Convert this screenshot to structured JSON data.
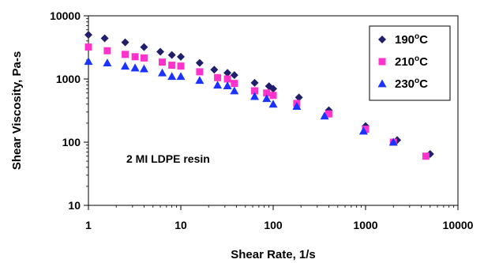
{
  "chart_data": {
    "type": "scatter",
    "xscale": "log",
    "yscale": "log",
    "xlim": [
      1,
      10000
    ],
    "ylim": [
      10,
      10000
    ],
    "xlabel": "Shear Rate, 1/s",
    "ylabel": "Shear Viscosity, Pa-s",
    "grid": false,
    "legend_position": "top-right",
    "x_ticks": [
      {
        "value": 1,
        "label": "1"
      },
      {
        "value": 10,
        "label": "10"
      },
      {
        "value": 100,
        "label": "100"
      },
      {
        "value": 1000,
        "label": "1000"
      },
      {
        "value": 10000,
        "label": "10000"
      }
    ],
    "y_ticks": [
      {
        "value": 10,
        "label": "10"
      },
      {
        "value": 100,
        "label": "100"
      },
      {
        "value": 1000,
        "label": "1000"
      },
      {
        "value": 10000,
        "label": "10000"
      }
    ],
    "annotation": "2 MI LDPE resin",
    "series": [
      {
        "name_base": "190",
        "name_super": "o",
        "name_suffix": "C",
        "marker": "diamond",
        "color": "#1F1F6B",
        "points": [
          [
            1,
            5000
          ],
          [
            1.5,
            4400
          ],
          [
            2.5,
            3800
          ],
          [
            4,
            3200
          ],
          [
            6,
            2700
          ],
          [
            8,
            2400
          ],
          [
            10,
            2250
          ],
          [
            16,
            1800
          ],
          [
            23,
            1400
          ],
          [
            32,
            1250
          ],
          [
            38,
            1150
          ],
          [
            63,
            870
          ],
          [
            90,
            770
          ],
          [
            100,
            700
          ],
          [
            190,
            510
          ],
          [
            400,
            320
          ],
          [
            1000,
            180
          ],
          [
            2200,
            108
          ],
          [
            5000,
            65
          ]
        ]
      },
      {
        "name_base": "210",
        "name_super": "o",
        "name_suffix": "C",
        "marker": "square",
        "color": "#FF33CC",
        "points": [
          [
            1,
            3200
          ],
          [
            1.6,
            2800
          ],
          [
            2.5,
            2450
          ],
          [
            3.2,
            2250
          ],
          [
            4,
            2150
          ],
          [
            6.3,
            1850
          ],
          [
            8,
            1650
          ],
          [
            10,
            1600
          ],
          [
            16,
            1300
          ],
          [
            25,
            1050
          ],
          [
            32,
            1000
          ],
          [
            38,
            850
          ],
          [
            63,
            650
          ],
          [
            85,
            600
          ],
          [
            100,
            550
          ],
          [
            180,
            410
          ],
          [
            400,
            280
          ],
          [
            1000,
            160
          ],
          [
            2000,
            100
          ],
          [
            4500,
            60
          ]
        ]
      },
      {
        "name_base": "230",
        "name_super": "o",
        "name_suffix": "C",
        "marker": "triangle",
        "color": "#1A33FF",
        "points": [
          [
            1,
            1900
          ],
          [
            1.6,
            1800
          ],
          [
            2.5,
            1600
          ],
          [
            3.2,
            1500
          ],
          [
            4,
            1450
          ],
          [
            6.3,
            1250
          ],
          [
            8,
            1100
          ],
          [
            10,
            1100
          ],
          [
            16,
            950
          ],
          [
            25,
            800
          ],
          [
            32,
            780
          ],
          [
            38,
            650
          ],
          [
            63,
            530
          ],
          [
            85,
            490
          ],
          [
            100,
            400
          ],
          [
            180,
            370
          ],
          [
            360,
            260
          ],
          [
            950,
            150
          ],
          [
            2000,
            100
          ]
        ]
      }
    ]
  }
}
